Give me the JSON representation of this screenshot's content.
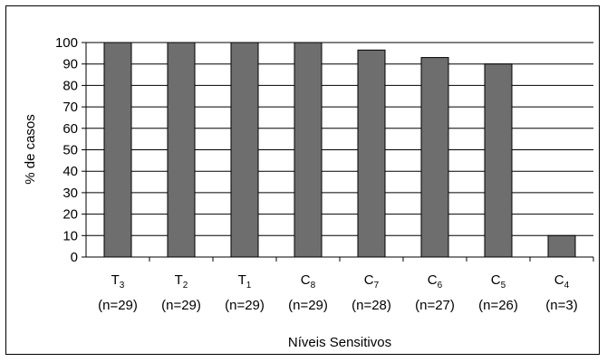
{
  "chart_data": {
    "type": "bar",
    "categories": [
      {
        "base": "T",
        "sub": "3",
        "n": "(n=29)"
      },
      {
        "base": "T",
        "sub": "2",
        "n": "(n=29)"
      },
      {
        "base": "T",
        "sub": "1",
        "n": "(n=29)"
      },
      {
        "base": "C",
        "sub": "8",
        "n": "(n=29)"
      },
      {
        "base": "C",
        "sub": "7",
        "n": "(n=28)"
      },
      {
        "base": "C",
        "sub": "6",
        "n": "(n=27)"
      },
      {
        "base": "C",
        "sub": "5",
        "n": "(n=26)"
      },
      {
        "base": "C",
        "sub": "4",
        "n": "(n=3)"
      }
    ],
    "values": [
      100,
      100,
      100,
      100,
      96.5,
      93,
      90,
      10
    ],
    "ylabel": "% de casos",
    "xlabel": "Níveis Sensitivos",
    "ylim": [
      0,
      100
    ],
    "yticks": [
      "0",
      "10",
      "20",
      "30",
      "40",
      "50",
      "60",
      "70",
      "80",
      "90",
      "100"
    ],
    "grid": true,
    "bar_color": "#6e6e6e"
  }
}
